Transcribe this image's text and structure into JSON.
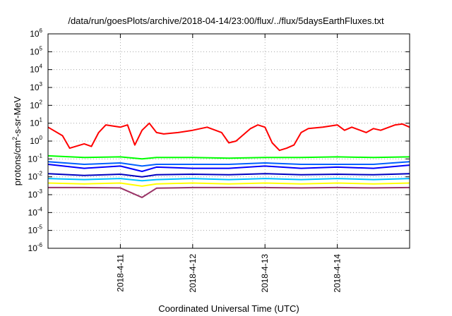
{
  "chart_data": {
    "type": "line",
    "title": "/data/run/goesPlots/archive/2018-04-14/23:00/flux/../flux/5daysEarthFluxes.txt",
    "xlabel": "Coordinated Universal Time (UTC)",
    "ylabel": {
      "before": "protons/cm",
      "sup": "2",
      "after": "-s-sr-MeV"
    },
    "yscale": "log",
    "ylim_exponents": [
      -6,
      6
    ],
    "y_tick_labels": [
      {
        "base": "10",
        "exp": "-6"
      },
      {
        "base": "10",
        "exp": "-5"
      },
      {
        "base": "10",
        "exp": "-4"
      },
      {
        "base": "10",
        "exp": "-3"
      },
      {
        "base": "10",
        "exp": "-2"
      },
      {
        "base": "10",
        "exp": "-1"
      },
      {
        "base": "10",
        "exp": "0"
      },
      {
        "base": "10",
        "exp": "1"
      },
      {
        "base": "10",
        "exp": "2"
      },
      {
        "base": "10",
        "exp": "3"
      },
      {
        "base": "10",
        "exp": "4"
      },
      {
        "base": "10",
        "exp": "5"
      },
      {
        "base": "10",
        "exp": "6"
      }
    ],
    "xlim": [
      "2018-04-10T00:00",
      "2018-04-15T00:00"
    ],
    "x_ticks": [
      "2018-04-11T00:00",
      "2018-04-12T00:00",
      "2018-04-13T00:00",
      "2018-04-14T00:00"
    ],
    "x_tick_labels": [
      "2018-4-11",
      "2018-4-12",
      "2018-4-13",
      "2018-4-14"
    ],
    "grid": true,
    "series": [
      {
        "color": "#ff0000",
        "x_day_of_month": [
          10.0,
          10.2,
          10.3,
          10.5,
          10.6,
          10.7,
          10.8,
          11.0,
          11.1,
          11.2,
          11.3,
          11.4,
          11.5,
          11.6,
          11.8,
          12.0,
          12.2,
          12.4,
          12.5,
          12.6,
          12.8,
          12.9,
          13.0,
          13.1,
          13.2,
          13.3,
          13.4,
          13.5,
          13.6,
          13.8,
          14.0,
          14.1,
          14.2,
          14.4,
          14.5,
          14.6,
          14.8,
          14.9,
          15.0
        ],
        "y": [
          6,
          2,
          0.4,
          0.7,
          0.5,
          3,
          8,
          6,
          8,
          0.6,
          4,
          10,
          3,
          2.5,
          3,
          4,
          6,
          3,
          0.8,
          1,
          5,
          8,
          6,
          0.8,
          0.3,
          0.4,
          0.6,
          3,
          5,
          6,
          8,
          4,
          6,
          3,
          5,
          4,
          8,
          9,
          6
        ]
      },
      {
        "color": "#00ff00",
        "x_day_of_month": [
          10.0,
          10.5,
          11.0,
          11.3,
          11.5,
          12.0,
          12.5,
          13.0,
          13.5,
          14.0,
          14.5,
          15.0
        ],
        "y": [
          0.15,
          0.12,
          0.13,
          0.1,
          0.12,
          0.12,
          0.11,
          0.12,
          0.12,
          0.13,
          0.12,
          0.13
        ]
      },
      {
        "color": "#0000ff",
        "x_day_of_month": [
          10.0,
          10.5,
          11.0,
          11.3,
          11.5,
          12.0,
          12.5,
          13.0,
          13.5,
          14.0,
          14.5,
          15.0
        ],
        "y": [
          0.05,
          0.03,
          0.04,
          0.02,
          0.035,
          0.03,
          0.03,
          0.04,
          0.03,
          0.035,
          0.03,
          0.045
        ]
      },
      {
        "color": "#0060ff",
        "x_day_of_month": [
          10.0,
          10.5,
          11.0,
          11.3,
          11.5,
          12.0,
          12.5,
          13.0,
          13.5,
          14.0,
          14.5,
          15.0
        ],
        "y": [
          0.07,
          0.05,
          0.06,
          0.04,
          0.05,
          0.05,
          0.05,
          0.06,
          0.05,
          0.05,
          0.05,
          0.07
        ]
      },
      {
        "color": "#0000c0",
        "x_day_of_month": [
          10.0,
          10.5,
          11.0,
          11.3,
          11.5,
          12.0,
          12.5,
          13.0,
          13.5,
          14.0,
          14.5,
          15.0
        ],
        "y": [
          0.015,
          0.012,
          0.014,
          0.01,
          0.013,
          0.014,
          0.013,
          0.015,
          0.013,
          0.014,
          0.013,
          0.015
        ]
      },
      {
        "color": "#00c0ff",
        "x_day_of_month": [
          10.0,
          10.5,
          11.0,
          11.3,
          11.5,
          12.0,
          12.5,
          13.0,
          13.5,
          14.0,
          14.5,
          15.0
        ],
        "y": [
          0.008,
          0.007,
          0.008,
          0.006,
          0.007,
          0.008,
          0.007,
          0.008,
          0.007,
          0.008,
          0.007,
          0.008
        ]
      },
      {
        "color": "#ffff00",
        "x_day_of_month": [
          10.0,
          10.5,
          11.0,
          11.3,
          11.5,
          12.0,
          12.5,
          13.0,
          13.5,
          14.0,
          14.5,
          15.0
        ],
        "y": [
          0.0045,
          0.004,
          0.0045,
          0.003,
          0.004,
          0.0045,
          0.004,
          0.0045,
          0.004,
          0.0045,
          0.004,
          0.0045
        ]
      },
      {
        "color": "#993366",
        "x_day_of_month": [
          10.0,
          10.5,
          11.0,
          11.3,
          11.5,
          12.0,
          12.5,
          13.0,
          13.5,
          14.0,
          14.5,
          15.0
        ],
        "y": [
          0.0025,
          0.0025,
          0.0024,
          0.0007,
          0.0023,
          0.0025,
          0.0025,
          0.0025,
          0.0024,
          0.0025,
          0.0024,
          0.0025
        ]
      }
    ]
  }
}
